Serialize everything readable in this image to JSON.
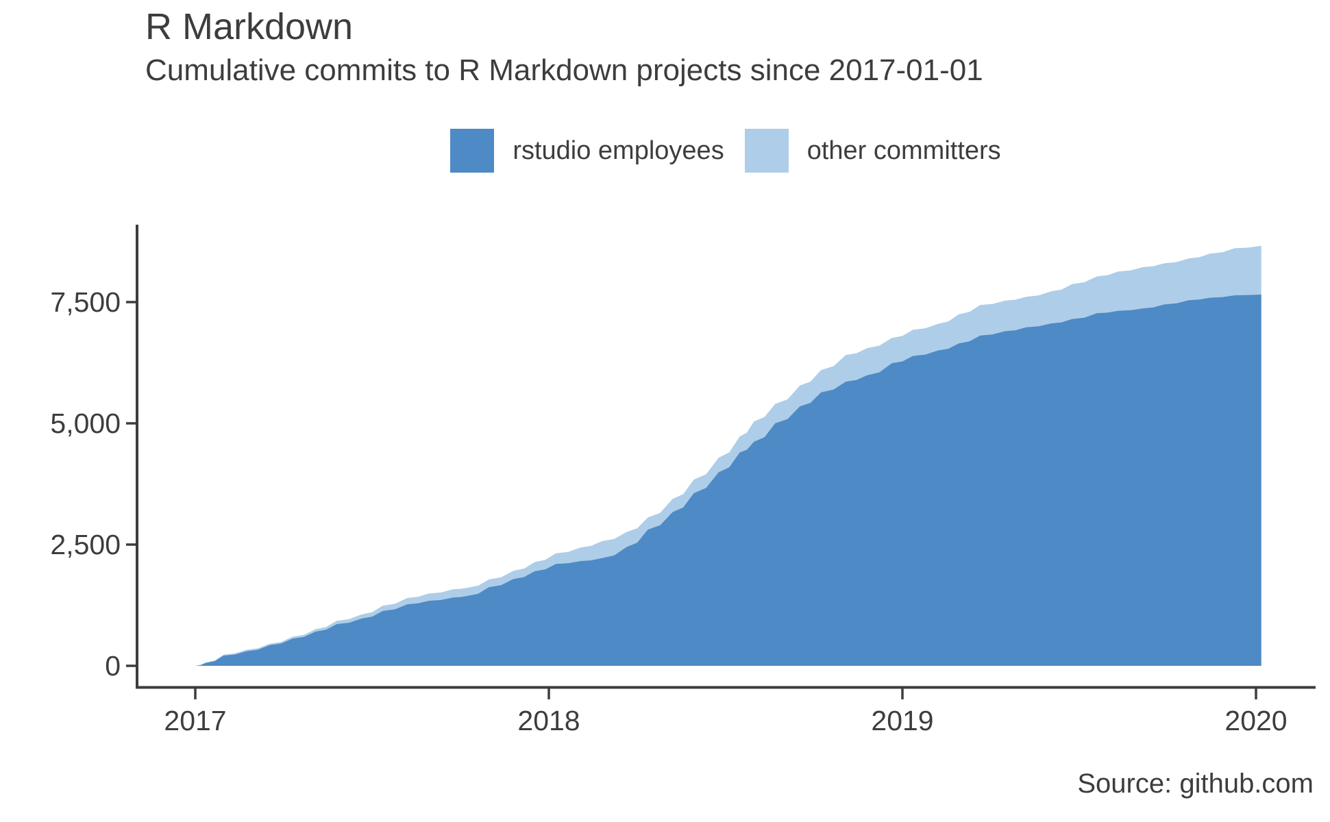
{
  "header": {
    "title": "R Markdown",
    "subtitle": "Cumulative commits to R Markdown projects since 2017-01-01"
  },
  "chart_data": {
    "type": "area",
    "stacked": true,
    "title": "R Markdown",
    "subtitle": "Cumulative commits to R Markdown projects since 2017-01-01",
    "xlabel": "",
    "ylabel": "",
    "legend_position": "top-center",
    "grid": false,
    "xlim": [
      2016.83,
      2020.17
    ],
    "ylim": [
      0,
      9100
    ],
    "x_tick_labels": [
      "2017",
      "2018",
      "2019",
      "2020"
    ],
    "x_tick_values": [
      2017,
      2018,
      2019,
      2020
    ],
    "y_tick_labels": [
      "0",
      "2,500",
      "5,000",
      "7,500"
    ],
    "y_tick_values": [
      0,
      2500,
      5000,
      7500
    ],
    "x": [
      2017.0,
      2017.03,
      2017.08,
      2017.145,
      2017.21,
      2017.275,
      2017.34,
      2017.4,
      2017.47,
      2017.53,
      2017.6,
      2017.66,
      2017.73,
      2017.77,
      2017.83,
      2017.9,
      2017.96,
      2018.02,
      2018.09,
      2018.15,
      2018.22,
      2018.28,
      2018.35,
      2018.41,
      2018.48,
      2018.54,
      2018.58,
      2018.64,
      2018.71,
      2018.77,
      2018.84,
      2018.9,
      2018.97,
      2019.03,
      2019.1,
      2019.16,
      2019.22,
      2019.29,
      2019.35,
      2019.42,
      2019.48,
      2019.55,
      2019.61,
      2019.68,
      2019.74,
      2019.81,
      2019.87,
      2019.94,
      2020.015
    ],
    "series": [
      {
        "name": "rstudio employees",
        "color": "#4e8ac5",
        "values": [
          0,
          60,
          210,
          300,
          425,
          560,
          705,
          860,
          975,
          1130,
          1270,
          1340,
          1410,
          1440,
          1620,
          1790,
          1950,
          2100,
          2160,
          2220,
          2450,
          2810,
          3170,
          3560,
          3990,
          4400,
          4620,
          5000,
          5350,
          5640,
          5860,
          5990,
          6240,
          6390,
          6500,
          6650,
          6810,
          6900,
          6980,
          7060,
          7150,
          7270,
          7320,
          7370,
          7450,
          7540,
          7590,
          7640,
          7655
        ],
        "stack": "bottom"
      },
      {
        "name": "other committers",
        "color": "#aecde8",
        "values": [
          0,
          10,
          20,
          30,
          30,
          40,
          50,
          70,
          85,
          110,
          130,
          150,
          170,
          170,
          160,
          170,
          190,
          220,
          280,
          350,
          310,
          250,
          270,
          280,
          300,
          330,
          420,
          400,
          430,
          460,
          550,
          560,
          520,
          540,
          550,
          600,
          630,
          630,
          630,
          660,
          720,
          760,
          810,
          850,
          850,
          860,
          910,
          970,
          1005
        ],
        "stack": "top"
      }
    ]
  },
  "footer": {
    "source": "Source: github.com"
  },
  "colors": {
    "rstudio_blue": "#4e8ac5",
    "other_blue": "#aecde8",
    "text": "#3d3d3d",
    "axis": "#3d3d3d",
    "background": "#ffffff"
  }
}
